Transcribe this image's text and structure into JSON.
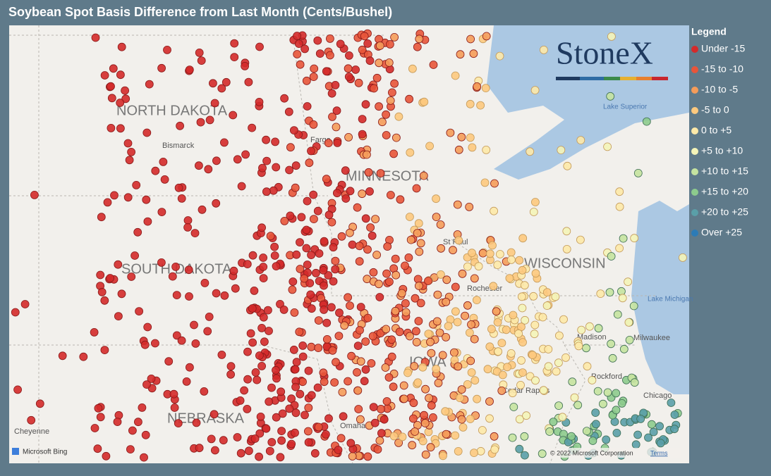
{
  "title": "Soybean Spot Basis Difference from Last Month (Cents/Bushel)",
  "legend": {
    "title": "Legend",
    "items": [
      {
        "label": "Under -15",
        "color": "#d42a2a"
      },
      {
        "label": "-15 to -10",
        "color": "#e8553a"
      },
      {
        "label": "-10 to -5",
        "color": "#f59c5a"
      },
      {
        "label": "-5 to 0",
        "color": "#fdc97e"
      },
      {
        "label": "0 to +5",
        "color": "#fde9a8"
      },
      {
        "label": "+5 to +10",
        "color": "#f4f4b8"
      },
      {
        "label": "+10 to +15",
        "color": "#c5e3a0"
      },
      {
        "label": "+15 to +20",
        "color": "#8dcb8d"
      },
      {
        "label": "+20 to +25",
        "color": "#5a9fa8"
      },
      {
        "label": "Over +25",
        "color": "#2c7bb6"
      }
    ]
  },
  "map_labels": {
    "states": [
      "NORTH DAKOTA",
      "MINNESOTA",
      "SOUTH DAKOTA",
      "WISCONSIN",
      "NEBRASKA",
      "IOWA"
    ],
    "cities": [
      "Bismarck",
      "Fargo",
      "St Paul",
      "Rochester",
      "Madison",
      "Milwaukee",
      "Rockford",
      "Chicago",
      "Cedar Rapids",
      "Omaha",
      "Cheyenne"
    ],
    "water": [
      "Lake Superior",
      "Lake Michigan"
    ]
  },
  "logo": "StoneX",
  "attribution": {
    "bing": "Microsoft Bing",
    "copyright": "© 2022 Microsoft Corporation",
    "terms": "Terms"
  }
}
